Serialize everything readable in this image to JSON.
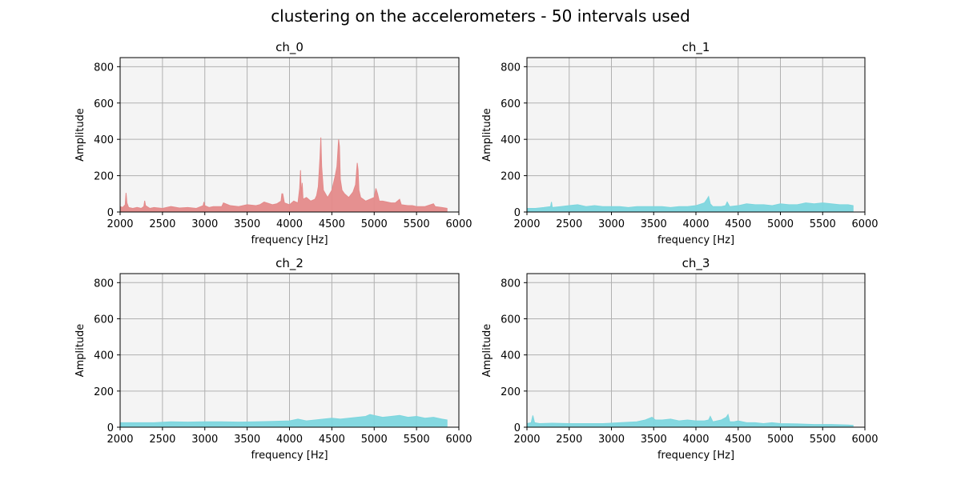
{
  "figure": {
    "title": "clustering on the accelerometers - 50 intervals used"
  },
  "chart_data": [
    {
      "type": "area",
      "title": "ch_0",
      "xlabel": "frequency [Hz]",
      "ylabel": "Amplitude",
      "xlim": [
        2000,
        6000
      ],
      "ylim": [
        0,
        850
      ],
      "xticks": [
        2000,
        2500,
        3000,
        3500,
        4000,
        4500,
        5000,
        5500,
        6000
      ],
      "yticks": [
        0,
        200,
        400,
        600,
        800
      ],
      "grid": true,
      "background": "#f4f4f4",
      "series": [
        {
          "color": "#e48a8a",
          "x": [
            2000,
            2030,
            2060,
            2070,
            2080,
            2100,
            2150,
            2200,
            2250,
            2280,
            2290,
            2300,
            2350,
            2400,
            2500,
            2600,
            2700,
            2800,
            2900,
            2980,
            2990,
            3000,
            3050,
            3100,
            3200,
            3220,
            3300,
            3400,
            3500,
            3600,
            3650,
            3700,
            3800,
            3850,
            3900,
            3910,
            3920,
            3940,
            4000,
            4050,
            4100,
            4120,
            4130,
            4140,
            4150,
            4160,
            4200,
            4250,
            4300,
            4320,
            4340,
            4360,
            4370,
            4380,
            4400,
            4450,
            4500,
            4540,
            4560,
            4580,
            4590,
            4600,
            4620,
            4650,
            4700,
            4750,
            4780,
            4800,
            4810,
            4820,
            4840,
            4900,
            4950,
            5000,
            5020,
            5040,
            5060,
            5100,
            5200,
            5250,
            5300,
            5320,
            5400,
            5450,
            5500,
            5600,
            5700,
            5720,
            5800,
            5860
          ],
          "values": [
            30,
            25,
            40,
            105,
            50,
            25,
            20,
            25,
            20,
            30,
            62,
            35,
            20,
            25,
            20,
            30,
            22,
            25,
            20,
            35,
            55,
            35,
            25,
            30,
            30,
            50,
            35,
            30,
            40,
            35,
            40,
            55,
            40,
            45,
            60,
            100,
            100,
            50,
            40,
            60,
            50,
            130,
            230,
            90,
            160,
            70,
            80,
            60,
            70,
            90,
            140,
            300,
            410,
            250,
            120,
            80,
            120,
            200,
            250,
            400,
            360,
            180,
            120,
            100,
            80,
            110,
            150,
            270,
            230,
            120,
            80,
            60,
            70,
            80,
            130,
            100,
            60,
            60,
            50,
            50,
            70,
            40,
            35,
            35,
            30,
            30,
            45,
            30,
            25,
            20
          ]
        }
      ]
    },
    {
      "type": "area",
      "title": "ch_1",
      "xlabel": "frequency [Hz]",
      "ylabel": "Amplitude",
      "xlim": [
        2000,
        6000
      ],
      "ylim": [
        0,
        850
      ],
      "xticks": [
        2000,
        2500,
        3000,
        3500,
        4000,
        4500,
        5000,
        5500,
        6000
      ],
      "yticks": [
        0,
        200,
        400,
        600,
        800
      ],
      "grid": true,
      "background": "#f4f4f4",
      "series": [
        {
          "color": "#7dd6de",
          "x": [
            2000,
            2100,
            2200,
            2280,
            2290,
            2300,
            2400,
            2500,
            2600,
            2700,
            2800,
            2900,
            3000,
            3100,
            3200,
            3300,
            3400,
            3500,
            3600,
            3700,
            3800,
            3900,
            4000,
            4100,
            4130,
            4150,
            4170,
            4200,
            4300,
            4350,
            4370,
            4400,
            4500,
            4600,
            4700,
            4800,
            4900,
            5000,
            5100,
            5200,
            5300,
            5400,
            5500,
            5600,
            5700,
            5800,
            5860
          ],
          "values": [
            20,
            20,
            25,
            30,
            55,
            25,
            30,
            35,
            40,
            30,
            35,
            30,
            30,
            30,
            25,
            30,
            30,
            30,
            30,
            25,
            30,
            30,
            35,
            50,
            70,
            85,
            45,
            30,
            30,
            35,
            55,
            30,
            35,
            45,
            40,
            40,
            35,
            45,
            40,
            40,
            50,
            45,
            50,
            45,
            40,
            40,
            35
          ]
        }
      ]
    },
    {
      "type": "area",
      "title": "ch_2",
      "xlabel": "frequency [Hz]",
      "ylabel": "Amplitude",
      "xlim": [
        2000,
        6000
      ],
      "ylim": [
        0,
        850
      ],
      "xticks": [
        2000,
        2500,
        3000,
        3500,
        4000,
        4500,
        5000,
        5500,
        6000
      ],
      "yticks": [
        0,
        200,
        400,
        600,
        800
      ],
      "grid": true,
      "background": "#f4f4f4",
      "series": [
        {
          "color": "#7dd6de",
          "x": [
            2000,
            2200,
            2400,
            2600,
            2800,
            3000,
            3200,
            3400,
            3600,
            3800,
            4000,
            4100,
            4200,
            4300,
            4400,
            4500,
            4600,
            4700,
            4800,
            4900,
            4950,
            5000,
            5050,
            5100,
            5200,
            5300,
            5400,
            5500,
            5600,
            5700,
            5800,
            5860
          ],
          "values": [
            25,
            25,
            25,
            30,
            28,
            30,
            30,
            28,
            30,
            32,
            35,
            45,
            35,
            40,
            45,
            50,
            45,
            50,
            55,
            60,
            70,
            65,
            60,
            55,
            60,
            65,
            55,
            60,
            50,
            55,
            45,
            40
          ]
        }
      ]
    },
    {
      "type": "area",
      "title": "ch_3",
      "xlabel": "frequency [Hz]",
      "ylabel": "Amplitude",
      "xlim": [
        2000,
        6000
      ],
      "ylim": [
        0,
        850
      ],
      "xticks": [
        2000,
        2500,
        3000,
        3500,
        4000,
        4500,
        5000,
        5500,
        6000
      ],
      "yticks": [
        0,
        200,
        400,
        600,
        800
      ],
      "grid": true,
      "background": "#f4f4f4",
      "series": [
        {
          "color": "#7dd6de",
          "x": [
            2000,
            2050,
            2070,
            2090,
            2150,
            2300,
            2500,
            2700,
            2900,
            3100,
            3300,
            3400,
            3480,
            3520,
            3600,
            3700,
            3800,
            3900,
            4000,
            4100,
            4150,
            4170,
            4200,
            4300,
            4360,
            4380,
            4400,
            4450,
            4500,
            4600,
            4700,
            4800,
            4900,
            5000,
            5200,
            5400,
            5600,
            5800,
            5860
          ],
          "values": [
            20,
            25,
            65,
            25,
            20,
            22,
            20,
            20,
            20,
            25,
            30,
            40,
            55,
            40,
            40,
            45,
            35,
            40,
            35,
            35,
            40,
            60,
            30,
            40,
            55,
            70,
            30,
            30,
            35,
            25,
            25,
            20,
            25,
            20,
            18,
            15,
            15,
            12,
            10
          ]
        }
      ]
    }
  ]
}
